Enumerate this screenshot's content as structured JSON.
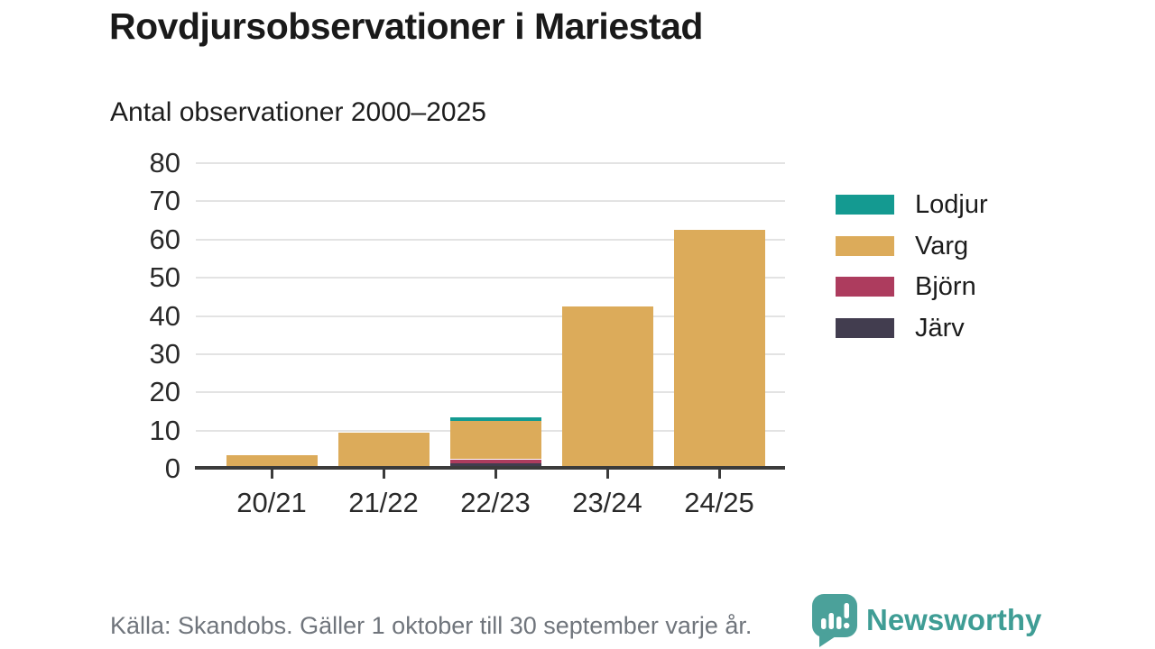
{
  "header": {
    "title": "Rovdjursobservationer i Mariestad"
  },
  "footer": {
    "source_note": "Källa: Skandobs. Gäller 1 oktober till 30 september varje år.",
    "brand": {
      "name": "Newsworthy",
      "icon": "newsworthy-chart-bubble-icon"
    }
  },
  "colors": {
    "axis": "#3b3b3b",
    "grid": "#e3e3e3",
    "tick_text": "#2a2a2a",
    "muted_text": "#70757c",
    "brand_teal": "#3f9d95",
    "brand_bubble": "#4ba19a"
  },
  "chart_data": {
    "type": "bar",
    "stacked": true,
    "title": "Antal observationer 2000–2025",
    "xlabel": "",
    "ylabel": "",
    "categories": [
      "20/21",
      "21/22",
      "22/23",
      "23/24",
      "24/25"
    ],
    "series": [
      {
        "name": "Lodjur",
        "color": "#149a91",
        "values": [
          0,
          0,
          1,
          0,
          0
        ]
      },
      {
        "name": "Varg",
        "color": "#dcab5a",
        "values": [
          3,
          9,
          10,
          42,
          62
        ]
      },
      {
        "name": "Björn",
        "color": "#ad3c5e",
        "values": [
          0,
          0,
          1,
          0,
          0
        ]
      },
      {
        "name": "Järv",
        "color": "#423d4f",
        "values": [
          0,
          0,
          1,
          0,
          0
        ]
      }
    ],
    "stack_order_bottom_to_top": [
      "Järv",
      "Björn",
      "Varg",
      "Lodjur"
    ],
    "totals": [
      3,
      9,
      13,
      42,
      62
    ],
    "ylim": [
      0,
      80
    ],
    "yticks": [
      0,
      10,
      20,
      30,
      40,
      50,
      60,
      70,
      80
    ],
    "grid": true,
    "legend_position": "right",
    "legend_order": [
      "Lodjur",
      "Varg",
      "Björn",
      "Järv"
    ]
  }
}
